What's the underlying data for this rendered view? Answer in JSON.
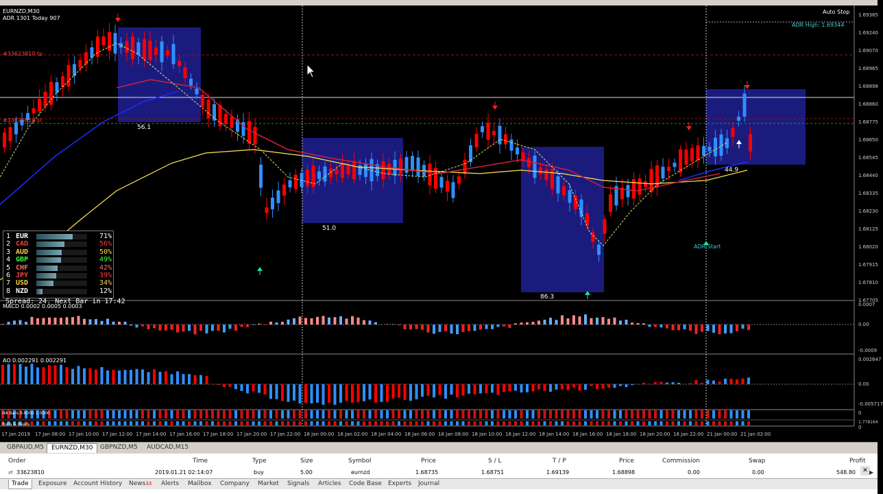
{
  "chart": {
    "symbol_title": "EURNZD,M30",
    "adr_info": "ADR 1301  Today 907",
    "autostop": "Auto Stop",
    "adr_high": "ADR High: 1.69344",
    "order_label": "#33623810 tp",
    "order_label2": "#33623810 sl",
    "box_labels": [
      "56.1",
      "51.0",
      "86.3",
      "44.9"
    ],
    "adr_start": "ADR Start",
    "price_labels": [
      "1.69385",
      "1.69240",
      "1.69070",
      "1.68965",
      "1.68898",
      "1.68860",
      "1.68775",
      "1.68650",
      "1.68545",
      "1.68440",
      "1.68335",
      "1.68230",
      "1.68125",
      "1.68020",
      "1.67915",
      "1.67810",
      "1.67705"
    ],
    "time_labels": [
      "17 Jan 2019",
      "17 Jan 08:00",
      "17 Jan 10:00",
      "17 Jan 12:00",
      "17 Jan 14:00",
      "17 Jan 16:00",
      "17 Jan 18:00",
      "17 Jan 20:00",
      "17 Jan 22:00",
      "18 Jan 00:00",
      "18 Jan 02:00",
      "18 Jan 04:00",
      "18 Jan 06:00",
      "18 Jan 08:00",
      "18 Jan 10:00",
      "18 Jan 12:00",
      "18 Jan 14:00",
      "18 Jan 16:00",
      "18 Jan 18:00",
      "18 Jan 20:00",
      "18 Jan 22:00",
      "21 Jan 00:00",
      "21 Jan 02:00"
    ]
  },
  "macd": {
    "title": "MACD 0.0002 0.0005 0.0003",
    "scale": [
      "0.0007",
      "0.00",
      "-0.0009"
    ]
  },
  "ao": {
    "title": "AO 0.002291 0.002291",
    "scale": [
      "0.002647",
      "0.00",
      "-0.005717"
    ]
  },
  "ha": {
    "title1": "HA Bars 0.0000 1.0000",
    "title2": "Bulls & Bears",
    "scale": [
      "0",
      "1.778164",
      "0"
    ]
  },
  "strength": {
    "rows": [
      {
        "rank": "1",
        "cur": "EUR",
        "pct": "71%",
        "val": 71,
        "color": "#ffffff"
      },
      {
        "rank": "2",
        "cur": "CAD",
        "pct": "56%",
        "val": 56,
        "color": "#ff3b3b"
      },
      {
        "rank": "3",
        "cur": "AUD",
        "pct": "50%",
        "val": 50,
        "color": "#ffd24a"
      },
      {
        "rank": "4",
        "cur": "GBP",
        "pct": "49%",
        "val": 49,
        "color": "#3cff3c"
      },
      {
        "rank": "5",
        "cur": "CHF",
        "pct": "42%",
        "val": 42,
        "color": "#ff6f6f"
      },
      {
        "rank": "6",
        "cur": "JPY",
        "pct": "39%",
        "val": 39,
        "color": "#ff4040"
      },
      {
        "rank": "7",
        "cur": "USD",
        "pct": "34%",
        "val": 34,
        "color": "#ffd24a"
      },
      {
        "rank": "8",
        "cur": "NZD",
        "pct": "12%",
        "val": 12,
        "color": "#ffffff"
      }
    ],
    "spread": "Spread: 24. Next Bar in 17:42"
  },
  "chart_tabs": [
    "GBPAUD,M5",
    "EURNZD,M30",
    "GBPNZD,M5",
    "AUDCAD,M15"
  ],
  "active_tab": "EURNZD,M30",
  "terminal": {
    "headers": [
      "Order",
      "Time",
      "Type",
      "Size",
      "Symbol",
      "Price",
      "S / L",
      "T / P",
      "Price",
      "Commission",
      "Swap",
      "Profit"
    ],
    "row": [
      "33623810",
      "2019.01.21 02:14:07",
      "buy",
      "5.00",
      "eurnzd",
      "1.68735",
      "1.68751",
      "1.69139",
      "1.68898",
      "0.00",
      "0.00",
      "548.80"
    ],
    "tabs": [
      "Trade",
      "Exposure",
      "Account History",
      "News",
      "Alerts",
      "Mailbox",
      "Company",
      "Market",
      "Signals",
      "Articles",
      "Code Base",
      "Experts",
      "Journal"
    ],
    "news_count": "33"
  },
  "colors": {
    "bull": "#2f8fff",
    "bear": "#ff0000",
    "box": "#1e1e8c",
    "ma_yellow": "#ffe94a",
    "ma_red": "#d0203a",
    "ma_blue": "#1a2dff"
  }
}
